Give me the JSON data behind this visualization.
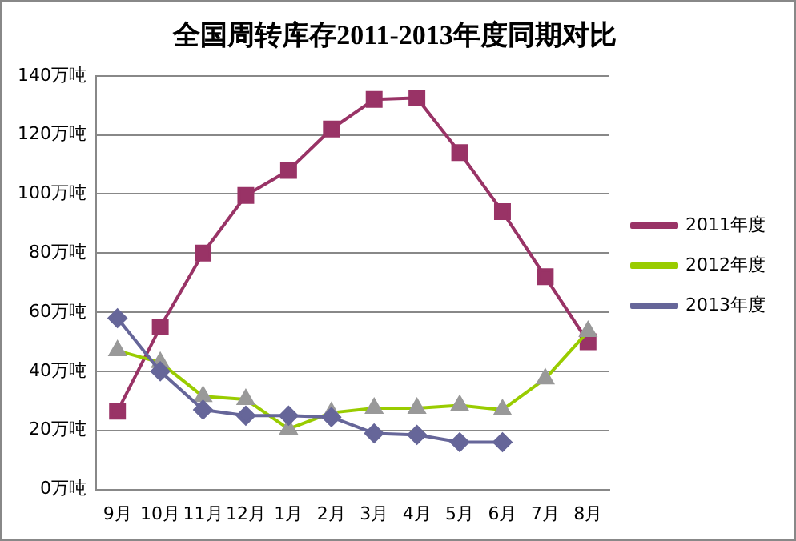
{
  "chart_data": {
    "type": "line",
    "title": "全国周转库存2011-2013年度同期对比",
    "categories": [
      "9月",
      "10月",
      "11月",
      "12月",
      "1月",
      "2月",
      "3月",
      "4月",
      "5月",
      "6月",
      "7月",
      "8月"
    ],
    "series": [
      {
        "name": "2011年度",
        "color": "#993366",
        "marker": "square",
        "values": [
          26.5,
          55,
          80,
          99.5,
          108,
          122,
          132,
          132.5,
          114,
          94,
          72,
          50
        ]
      },
      {
        "name": "2012年度",
        "color": "#99cc00",
        "marker": "triangle",
        "values": [
          47,
          43,
          31.5,
          30.5,
          20.5,
          26,
          27.5,
          27.5,
          28.5,
          27,
          37.5,
          53.5
        ]
      },
      {
        "name": "2013年度",
        "color": "#666699",
        "marker": "diamond",
        "values": [
          58,
          40,
          27,
          25,
          25,
          24.5,
          19,
          18.5,
          16,
          16,
          null,
          null
        ]
      }
    ],
    "ylim": [
      0,
      140
    ],
    "yticks": [
      {
        "value": 0,
        "label": "0万吨"
      },
      {
        "value": 20,
        "label": "20万吨"
      },
      {
        "value": 40,
        "label": "40万吨"
      },
      {
        "value": 60,
        "label": "60万吨"
      },
      {
        "value": 80,
        "label": "80万吨"
      },
      {
        "value": 100,
        "label": "100万吨"
      },
      {
        "value": 120,
        "label": "120万吨"
      },
      {
        "value": 140,
        "label": "140万吨"
      }
    ],
    "grid": "y",
    "legend": "right"
  }
}
